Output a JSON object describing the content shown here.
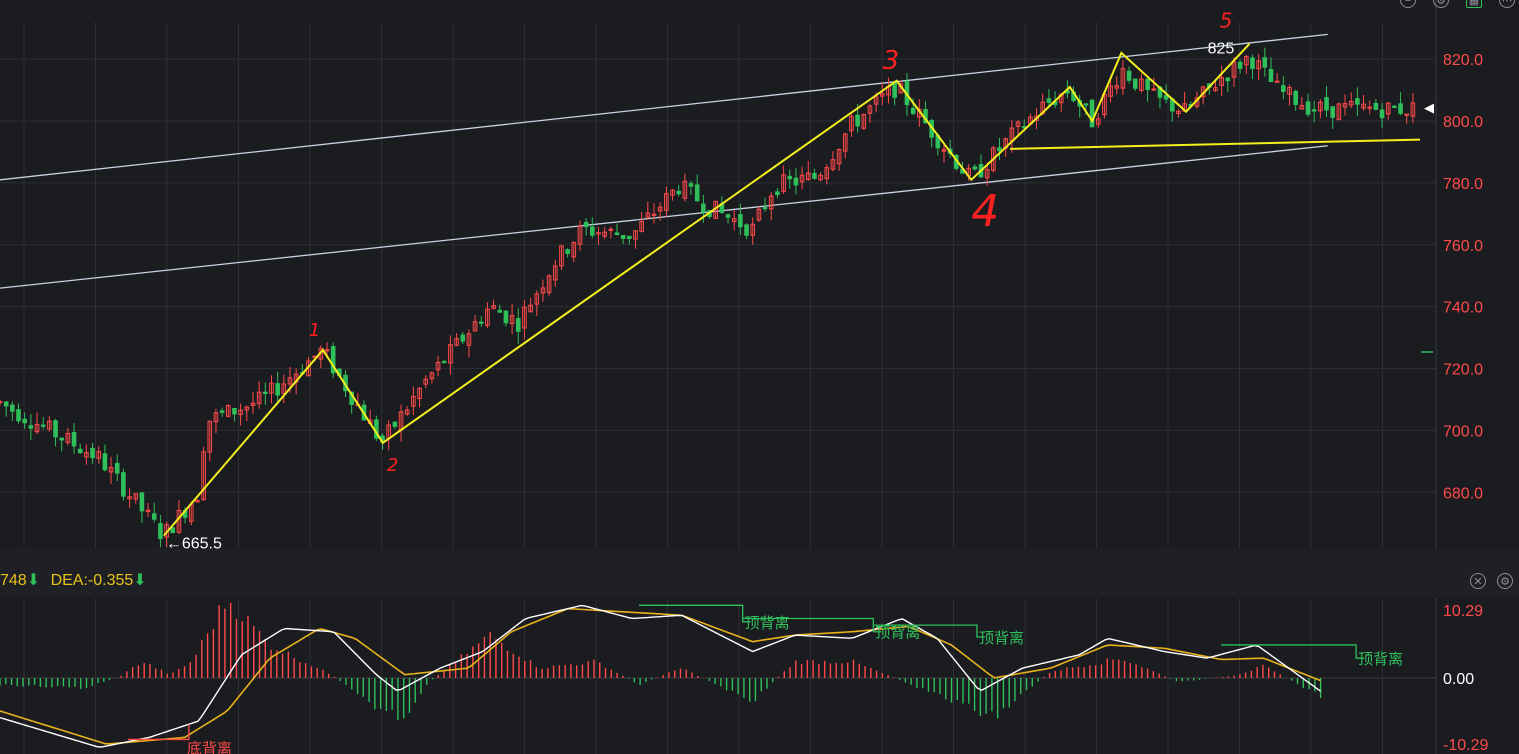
{
  "colors": {
    "background": "#1b1c20",
    "grid": "#2c2e33",
    "axis_text": "#ff4a4a",
    "up": "#ff4a4a",
    "down": "#2fbf5b",
    "channel": "#c8d4e3",
    "annotation": "#f3f01e",
    "wave_number": "#ff2020",
    "macd": "#ffffff",
    "signal": "#e8b21c",
    "divergence_box": "#2fbf5b"
  },
  "indicator": {
    "macd_value": "748",
    "dea_label": "DEA:-0.355",
    "down_arrow_icon": "down-arrow-icon"
  },
  "chart_data": [
    {
      "type": "candlestick",
      "y_ticks": [
        "820.0",
        "800.0",
        "780.0",
        "760.0",
        "740.0",
        "720.0",
        "700.0",
        "680.0"
      ],
      "ylim": [
        662,
        832
      ],
      "low_label": "←665.5",
      "high_label": "825",
      "last_price": 804,
      "wave_labels": [
        "1",
        "2",
        "3",
        "4",
        "5"
      ],
      "wave_path": [
        {
          "i": 0.1154,
          "v": 666
        },
        {
          "i": 0.2274,
          "v": 726
        },
        {
          "i": 0.2696,
          "v": 696
        },
        {
          "i": 0.6314,
          "v": 813
        },
        {
          "i": 0.684,
          "v": 781
        },
        {
          "i": 0.7534,
          "v": 811
        },
        {
          "i": 0.7692,
          "v": 800
        },
        {
          "i": 0.7897,
          "v": 822
        },
        {
          "i": 0.8353,
          "v": 803
        },
        {
          "i": 0.88,
          "v": 825
        }
      ],
      "neckline": [
        {
          "i": 0.7113,
          "v": 791
        },
        {
          "i": 1.0,
          "v": 794
        }
      ],
      "channel_upper": [
        {
          "i": 0.0,
          "v": 781
        },
        {
          "i": 0.935,
          "v": 828
        }
      ],
      "channel_lower": [
        {
          "i": 0.0,
          "v": 746
        },
        {
          "i": 0.935,
          "v": 792
        }
      ],
      "anchors": [
        {
          "i": 0.0,
          "v": 709
        },
        {
          "i": 0.07,
          "v": 691
        },
        {
          "i": 0.115,
          "v": 666
        },
        {
          "i": 0.14,
          "v": 680
        },
        {
          "i": 0.145,
          "v": 703
        },
        {
          "i": 0.185,
          "v": 710
        },
        {
          "i": 0.227,
          "v": 726
        },
        {
          "i": 0.269,
          "v": 696
        },
        {
          "i": 0.3,
          "v": 716
        },
        {
          "i": 0.345,
          "v": 740
        },
        {
          "i": 0.365,
          "v": 735
        },
        {
          "i": 0.39,
          "v": 754
        },
        {
          "i": 0.41,
          "v": 765
        },
        {
          "i": 0.445,
          "v": 763
        },
        {
          "i": 0.478,
          "v": 779
        },
        {
          "i": 0.5,
          "v": 772
        },
        {
          "i": 0.53,
          "v": 765
        },
        {
          "i": 0.545,
          "v": 779
        },
        {
          "i": 0.575,
          "v": 782
        },
        {
          "i": 0.6,
          "v": 799
        },
        {
          "i": 0.631,
          "v": 811
        },
        {
          "i": 0.684,
          "v": 781
        },
        {
          "i": 0.71,
          "v": 794
        },
        {
          "i": 0.735,
          "v": 805
        },
        {
          "i": 0.753,
          "v": 810
        },
        {
          "i": 0.769,
          "v": 800
        },
        {
          "i": 0.79,
          "v": 817
        },
        {
          "i": 0.81,
          "v": 808
        },
        {
          "i": 0.835,
          "v": 803
        },
        {
          "i": 0.86,
          "v": 814
        },
        {
          "i": 0.88,
          "v": 821
        },
        {
          "i": 0.9,
          "v": 810
        },
        {
          "i": 0.925,
          "v": 804
        }
      ]
    },
    {
      "type": "macd",
      "y_ticks": [
        "10.29",
        "0.00",
        "-10.29"
      ],
      "ylim": [
        -10.29,
        10.29
      ],
      "divergence_labels": [
        "顶背离",
        "顶背离",
        "顶背离",
        "顶背离"
      ],
      "bottom_divergence_label": "底背离",
      "hist_anchors": [
        {
          "i": 0.0,
          "v": -1
        },
        {
          "i": 0.06,
          "v": -1.5
        },
        {
          "i": 0.085,
          "v": 0.3
        },
        {
          "i": 0.1,
          "v": 2.5
        },
        {
          "i": 0.12,
          "v": 0.5
        },
        {
          "i": 0.135,
          "v": 2.5
        },
        {
          "i": 0.16,
          "v": 12
        },
        {
          "i": 0.19,
          "v": 5
        },
        {
          "i": 0.235,
          "v": 0.3
        },
        {
          "i": 0.26,
          "v": -4
        },
        {
          "i": 0.285,
          "v": -6
        },
        {
          "i": 0.3,
          "v": -1
        },
        {
          "i": 0.345,
          "v": 6.5
        },
        {
          "i": 0.38,
          "v": 1.5
        },
        {
          "i": 0.42,
          "v": 2.5
        },
        {
          "i": 0.45,
          "v": -1
        },
        {
          "i": 0.48,
          "v": 1.5
        },
        {
          "i": 0.53,
          "v": -3.5
        },
        {
          "i": 0.56,
          "v": 2.5
        },
        {
          "i": 0.6,
          "v": 2.5
        },
        {
          "i": 0.64,
          "v": -0.8
        },
        {
          "i": 0.7,
          "v": -6
        },
        {
          "i": 0.74,
          "v": 1
        },
        {
          "i": 0.79,
          "v": 3
        },
        {
          "i": 0.83,
          "v": -0.6
        },
        {
          "i": 0.87,
          "v": 0.4
        },
        {
          "i": 0.89,
          "v": 1.8
        },
        {
          "i": 0.93,
          "v": -2.8
        }
      ],
      "dif_anchors": [
        {
          "i": 0.0,
          "v": -6
        },
        {
          "i": 0.07,
          "v": -10.5
        },
        {
          "i": 0.105,
          "v": -9
        },
        {
          "i": 0.14,
          "v": -6.5
        },
        {
          "i": 0.17,
          "v": 3.5
        },
        {
          "i": 0.2,
          "v": 7.5
        },
        {
          "i": 0.235,
          "v": 7
        },
        {
          "i": 0.265,
          "v": 0.5
        },
        {
          "i": 0.28,
          "v": -2
        },
        {
          "i": 0.31,
          "v": 1.5
        },
        {
          "i": 0.34,
          "v": 4
        },
        {
          "i": 0.37,
          "v": 9
        },
        {
          "i": 0.41,
          "v": 11
        },
        {
          "i": 0.445,
          "v": 9
        },
        {
          "i": 0.48,
          "v": 9.5
        },
        {
          "i": 0.53,
          "v": 4
        },
        {
          "i": 0.56,
          "v": 6.5
        },
        {
          "i": 0.6,
          "v": 6
        },
        {
          "i": 0.635,
          "v": 9
        },
        {
          "i": 0.66,
          "v": 6
        },
        {
          "i": 0.69,
          "v": -2
        },
        {
          "i": 0.72,
          "v": 1.5
        },
        {
          "i": 0.76,
          "v": 3.5
        },
        {
          "i": 0.78,
          "v": 6
        },
        {
          "i": 0.82,
          "v": 4
        },
        {
          "i": 0.85,
          "v": 3
        },
        {
          "i": 0.885,
          "v": 5
        },
        {
          "i": 0.93,
          "v": -2
        }
      ],
      "dea_anchors": [
        {
          "i": 0.0,
          "v": -5
        },
        {
          "i": 0.075,
          "v": -10
        },
        {
          "i": 0.13,
          "v": -9
        },
        {
          "i": 0.16,
          "v": -5
        },
        {
          "i": 0.19,
          "v": 3
        },
        {
          "i": 0.225,
          "v": 7.5
        },
        {
          "i": 0.25,
          "v": 6
        },
        {
          "i": 0.285,
          "v": 0.5
        },
        {
          "i": 0.33,
          "v": 1.5
        },
        {
          "i": 0.36,
          "v": 7
        },
        {
          "i": 0.4,
          "v": 10.5
        },
        {
          "i": 0.44,
          "v": 10
        },
        {
          "i": 0.48,
          "v": 9.5
        },
        {
          "i": 0.53,
          "v": 5.5
        },
        {
          "i": 0.56,
          "v": 6.5
        },
        {
          "i": 0.6,
          "v": 7
        },
        {
          "i": 0.64,
          "v": 7.8
        },
        {
          "i": 0.67,
          "v": 5
        },
        {
          "i": 0.7,
          "v": 0
        },
        {
          "i": 0.74,
          "v": 1.5
        },
        {
          "i": 0.78,
          "v": 5
        },
        {
          "i": 0.82,
          "v": 4.5
        },
        {
          "i": 0.86,
          "v": 2.8
        },
        {
          "i": 0.89,
          "v": 3
        },
        {
          "i": 0.93,
          "v": -0.4
        }
      ]
    }
  ]
}
